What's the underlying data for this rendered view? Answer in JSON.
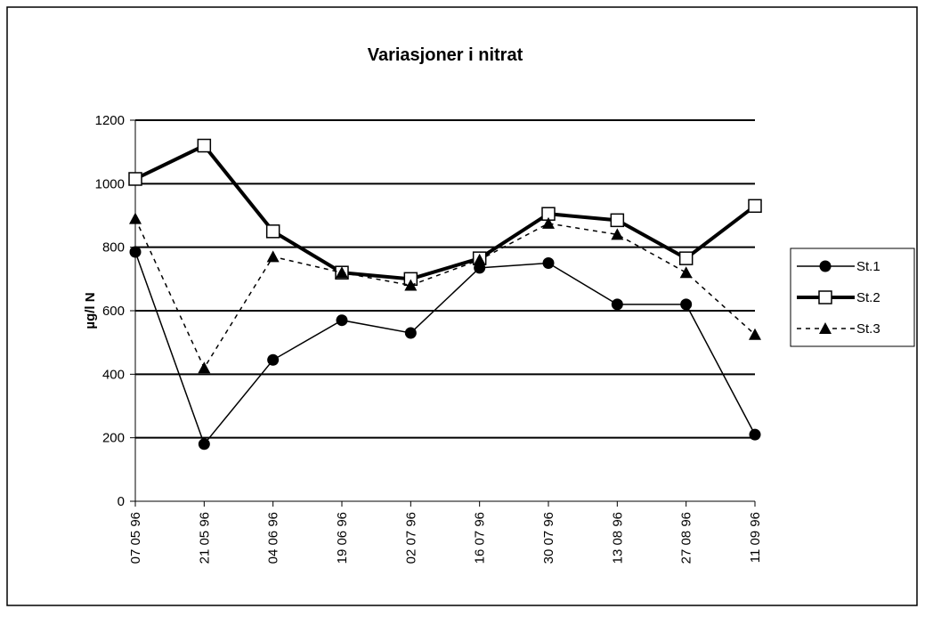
{
  "chart_data": {
    "type": "line",
    "title": "Variasjoner i nitrat",
    "y_label": "µg/l N",
    "categories": [
      "07 05 96",
      "21 05 96",
      "04 06 96",
      "19 06 96",
      "02 07 96",
      "16 07 96",
      "30 07 96",
      "13 08 96",
      "27 08 96",
      "11 09 96"
    ],
    "series": [
      {
        "name": "St.1",
        "color": "#000000",
        "marker": "circle",
        "line_style": "solid",
        "values": [
          785,
          180,
          445,
          570,
          530,
          735,
          750,
          620,
          620,
          210
        ]
      },
      {
        "name": "St.2",
        "color": "#000000",
        "marker": "square",
        "line_style": "thick",
        "values": [
          1015,
          1120,
          850,
          720,
          700,
          765,
          905,
          885,
          765,
          930
        ]
      },
      {
        "name": "St.3",
        "color": "#000000",
        "marker": "triangle",
        "line_style": "dashed",
        "values": [
          890,
          420,
          770,
          720,
          680,
          760,
          875,
          840,
          720,
          525
        ]
      }
    ],
    "ylim": [
      0,
      1200
    ],
    "yticks": [
      0,
      200,
      400,
      600,
      800,
      1000,
      1200
    ],
    "grid": true,
    "legend": "right"
  }
}
